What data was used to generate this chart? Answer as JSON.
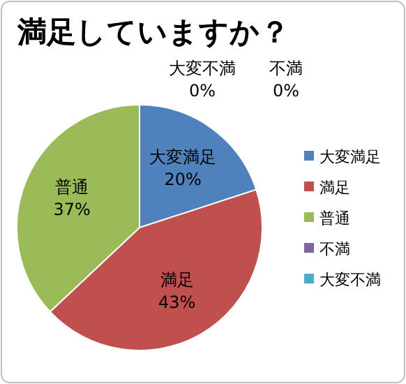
{
  "chart_data": {
    "type": "pie",
    "title": "満足していますか？",
    "categories": [
      "大変満足",
      "満足",
      "普通",
      "不満",
      "大変不満"
    ],
    "values": [
      20,
      43,
      37,
      0,
      0
    ],
    "colors": [
      "#4f81bd",
      "#c0504d",
      "#9bbb59",
      "#8064a2",
      "#4bacc6"
    ],
    "value_labels": [
      "20%",
      "43%",
      "37%",
      "0%",
      "0%"
    ],
    "legend": "right"
  }
}
